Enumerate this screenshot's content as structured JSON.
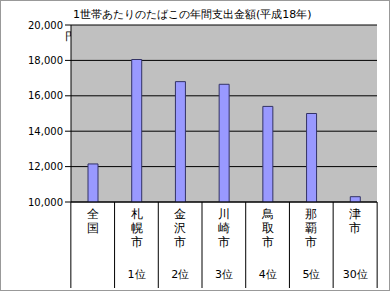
{
  "chart_data": {
    "type": "bar",
    "title": "1世帯あたりのたばこの年間支出金額(平成18年)",
    "y_label": "円",
    "categories": [
      "全国",
      "札幌市",
      "金沢市",
      "川崎市",
      "鳥取市",
      "那覇市",
      "津市"
    ],
    "ranks": [
      null,
      "1位",
      "2位",
      "3位",
      "4位",
      "5位",
      "30位"
    ],
    "values": [
      12150,
      18050,
      16800,
      16650,
      15400,
      15000,
      10300
    ],
    "color": "#9999ff",
    "ylim": [
      10000,
      20000
    ],
    "yticks": [
      {
        "value": 10000,
        "label": "10,000"
      },
      {
        "value": 12000,
        "label": "12,000"
      },
      {
        "value": 14000,
        "label": "14,000"
      },
      {
        "value": 16000,
        "label": "16,000"
      },
      {
        "value": 18000,
        "label": "18,000"
      },
      {
        "value": 20000,
        "label": "20,000"
      }
    ],
    "grid": true
  }
}
